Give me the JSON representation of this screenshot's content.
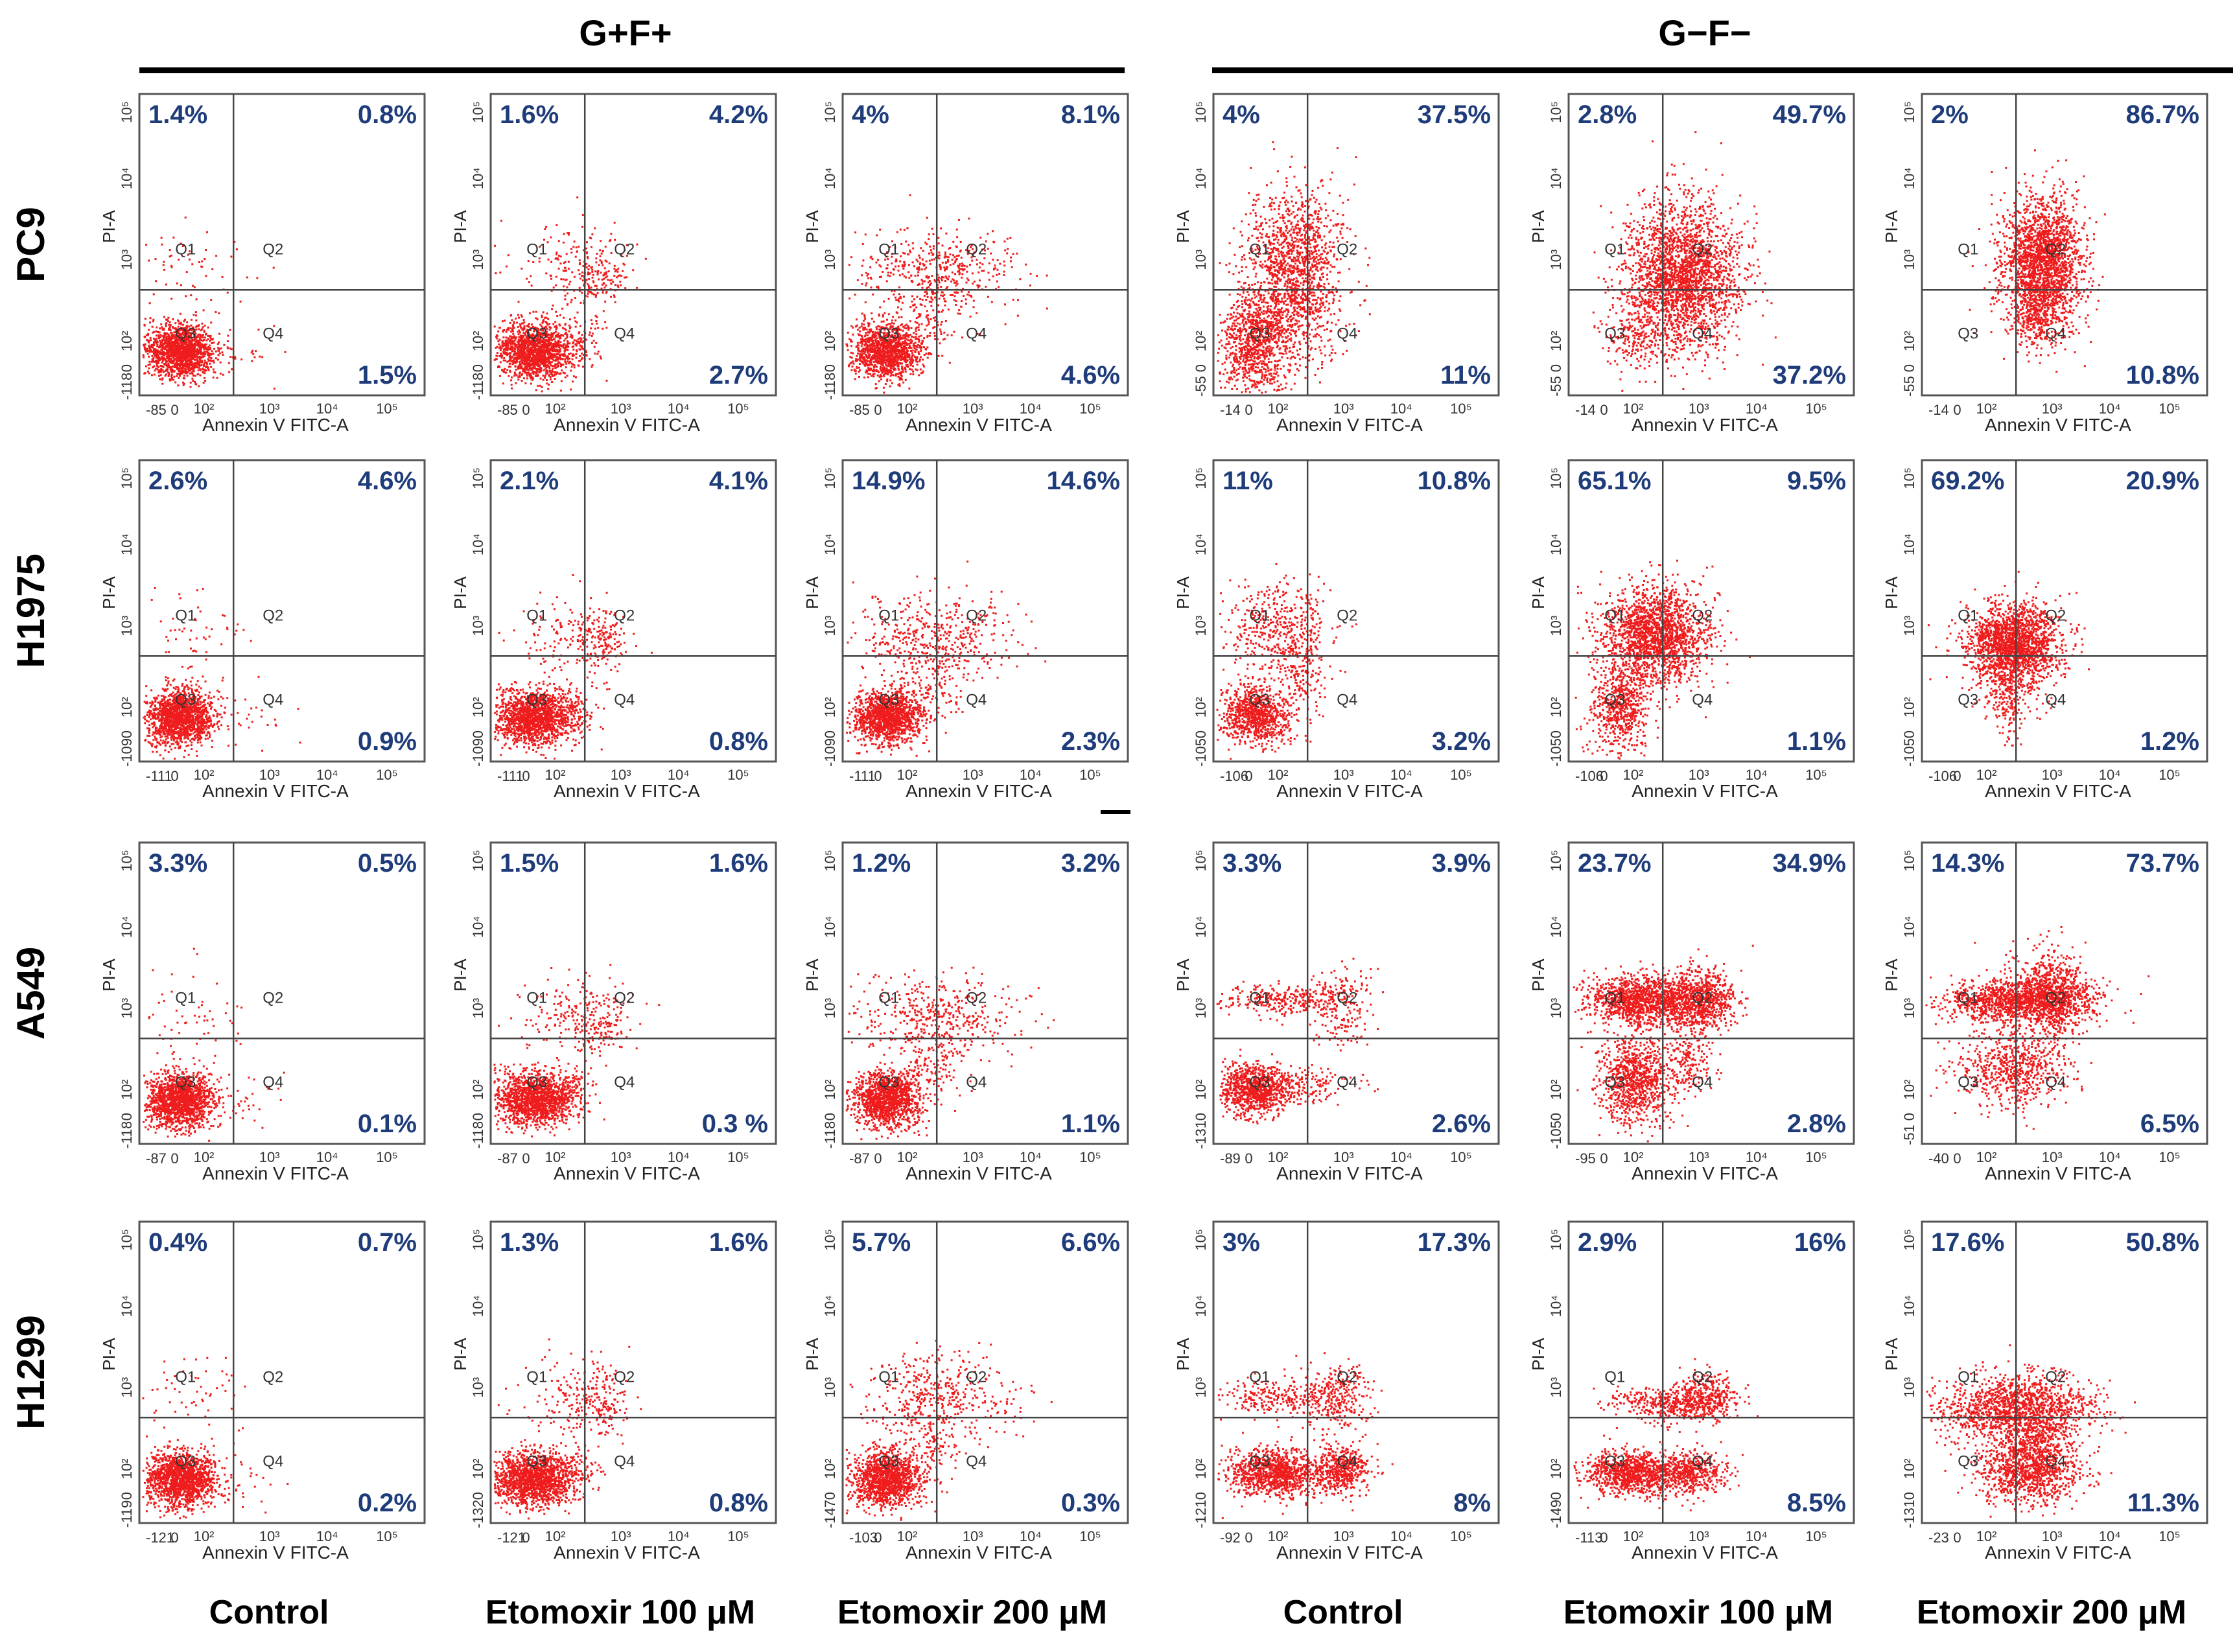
{
  "header": {
    "groups": [
      {
        "label": "G+F+"
      },
      {
        "label": "G−F−"
      }
    ]
  },
  "rows": [
    {
      "label": "PC9",
      "panels": [
        {
          "q1": "1.4%",
          "q2": "0.8%",
          "q4": "1.5%",
          "x_min": "-85",
          "y_min": "-118",
          "pattern": "g1"
        },
        {
          "q1": "1.6%",
          "q2": "4.2%",
          "q4": "2.7%",
          "x_min": "-85",
          "y_min": "-118",
          "pattern": "g2"
        },
        {
          "q1": "4%",
          "q2": "8.1%",
          "q4": "4.6%",
          "x_min": "-85",
          "y_min": "-118",
          "pattern": "g3"
        },
        {
          "q1": "4%",
          "q2": "37.5%",
          "q4": "11%",
          "x_min": "-14",
          "y_min": "-55",
          "pattern": "pc9c"
        },
        {
          "q1": "2.8%",
          "q2": "49.7%",
          "q4": "37.2%",
          "x_min": "-14",
          "y_min": "-55",
          "pattern": "pc9e1"
        },
        {
          "q1": "2%",
          "q2": "86.7%",
          "q4": "10.8%",
          "x_min": "-14",
          "y_min": "-55",
          "pattern": "pc9e2"
        }
      ]
    },
    {
      "label": "H1975",
      "panels": [
        {
          "q1": "2.6%",
          "q2": "4.6%",
          "q4": "0.9%",
          "x_min": "-111",
          "y_min": "-109",
          "pattern": "g1"
        },
        {
          "q1": "2.1%",
          "q2": "4.1%",
          "q4": "0.8%",
          "x_min": "-111",
          "y_min": "-109",
          "pattern": "g2"
        },
        {
          "q1": "14.9%",
          "q2": "14.6%",
          "q4": "2.3%",
          "x_min": "-111",
          "y_min": "-109",
          "pattern": "g3"
        },
        {
          "q1": "11%",
          "q2": "10.8%",
          "q4": "3.2%",
          "x_min": "-106",
          "y_min": "-105",
          "pattern": "hc"
        },
        {
          "q1": "65.1%",
          "q2": "9.5%",
          "q4": "1.1%",
          "x_min": "-106",
          "y_min": "-105",
          "pattern": "he1"
        },
        {
          "q1": "69.2%",
          "q2": "20.9%",
          "q4": "1.2%",
          "x_min": "-106",
          "y_min": "-105",
          "pattern": "he2"
        }
      ]
    },
    {
      "label": "A549",
      "panels": [
        {
          "q1": "3.3%",
          "q2": "0.5%",
          "q4": "0.1%",
          "x_min": "-87",
          "y_min": "-118",
          "pattern": "g1"
        },
        {
          "q1": "1.5%",
          "q2": "1.6%",
          "q4": "0.3 %",
          "x_min": "-87",
          "y_min": "-118",
          "pattern": "g2"
        },
        {
          "q1": "1.2%",
          "q2": "3.2%",
          "q4": "1.1%",
          "x_min": "-87",
          "y_min": "-118",
          "pattern": "g3"
        },
        {
          "q1": "3.3%",
          "q2": "3.9%",
          "q4": "2.6%",
          "x_min": "-89",
          "y_min": "-131",
          "pattern": "ac"
        },
        {
          "q1": "23.7%",
          "q2": "34.9%",
          "q4": "2.8%",
          "x_min": "-95",
          "y_min": "-105",
          "pattern": "ae1"
        },
        {
          "q1": "14.3%",
          "q2": "73.7%",
          "q4": "6.5%",
          "x_min": "-40",
          "y_min": "-51",
          "pattern": "ae2"
        }
      ]
    },
    {
      "label": "H1299",
      "panels": [
        {
          "q1": "0.4%",
          "q2": "0.7%",
          "q4": "0.2%",
          "x_min": "-121",
          "y_min": "-119",
          "pattern": "g1"
        },
        {
          "q1": "1.3%",
          "q2": "1.6%",
          "q4": "0.8%",
          "x_min": "-121",
          "y_min": "-132",
          "pattern": "g2"
        },
        {
          "q1": "5.7%",
          "q2": "6.6%",
          "q4": "0.3%",
          "x_min": "-103",
          "y_min": "-147",
          "pattern": "g3"
        },
        {
          "q1": "3%",
          "q2": "17.3%",
          "q4": "8%",
          "x_min": "-92",
          "y_min": "-121",
          "pattern": "h1c"
        },
        {
          "q1": "2.9%",
          "q2": "16%",
          "q4": "8.5%",
          "x_min": "-113",
          "y_min": "-149",
          "pattern": "h1e1"
        },
        {
          "q1": "17.6%",
          "q2": "50.8%",
          "q4": "11.3%",
          "x_min": "-23",
          "y_min": "-131",
          "pattern": "h1e2"
        }
      ]
    }
  ],
  "columns": [
    {
      "label": "Control"
    },
    {
      "label": "Etomoxir 100 μM"
    },
    {
      "label": "Etomoxir 200 μM"
    },
    {
      "label": "Control"
    },
    {
      "label": "Etomoxir 100 μM"
    },
    {
      "label": "Etomoxir 200 μM"
    }
  ],
  "axis": {
    "x_label": "Annexin V FITC-A",
    "y_label": "PI-A",
    "x_ticks": [
      "10²",
      "10³",
      "10⁴",
      "10⁵"
    ],
    "y_ticks": [
      "10²",
      "10³",
      "10⁴",
      "10⁵"
    ],
    "zero": "0",
    "quadrants": [
      "Q1",
      "Q2",
      "Q3",
      "Q4"
    ]
  },
  "colors": {
    "dots": "#ee1c1c",
    "percent": "#1f3c7a",
    "axis": "#333333"
  }
}
